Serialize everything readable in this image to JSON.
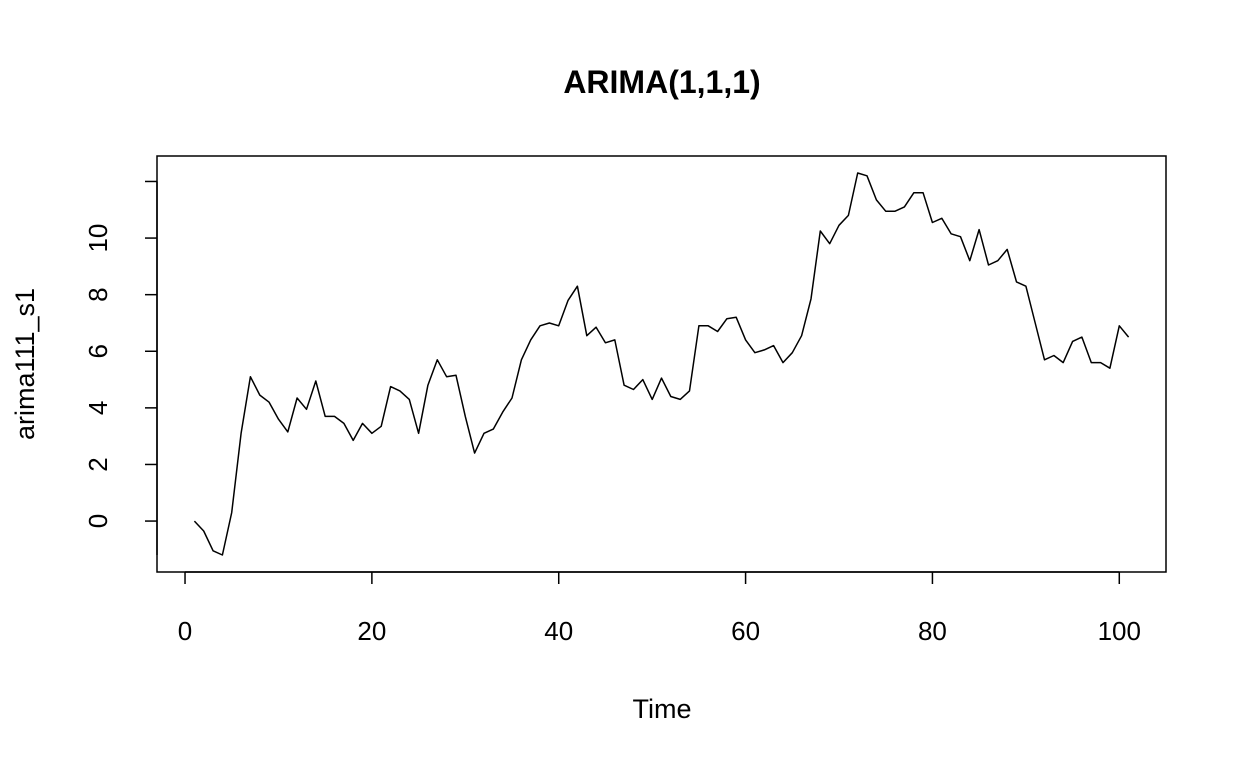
{
  "chart_data": {
    "type": "line",
    "title": "ARIMA(1,1,1)",
    "xlabel": "Time",
    "ylabel": "arima111_s1",
    "xlim": [
      -3,
      105
    ],
    "ylim": [
      -1.8,
      12.9
    ],
    "x_ticks": [
      0,
      20,
      40,
      60,
      80,
      100
    ],
    "y_ticks": [
      0,
      2,
      4,
      6,
      8,
      10
    ],
    "x_tick_labels": [
      "0",
      "20",
      "40",
      "60",
      "80",
      "100"
    ],
    "y_tick_labels": [
      "0",
      "2",
      "4",
      "6",
      "8",
      "10"
    ],
    "grid": false,
    "series": [
      {
        "color": "#000000",
        "x": [
          1,
          2,
          3,
          4,
          5,
          6,
          7,
          8,
          9,
          10,
          11,
          12,
          13,
          14,
          15,
          16,
          17,
          18,
          19,
          20,
          21,
          22,
          23,
          24,
          25,
          26,
          27,
          28,
          29,
          30,
          31,
          32,
          33,
          34,
          35,
          36,
          37,
          38,
          39,
          40,
          41,
          42,
          43,
          44,
          45,
          46,
          47,
          48,
          49,
          50,
          51,
          52,
          53,
          54,
          55,
          56,
          57,
          58,
          59,
          60,
          61,
          62,
          63,
          64,
          65,
          66,
          67,
          68,
          69,
          70,
          71,
          72,
          73,
          74,
          75,
          76,
          77,
          78,
          79,
          80,
          81,
          82,
          83,
          84,
          85,
          86,
          87,
          88,
          89,
          90,
          91,
          92,
          93,
          94,
          95,
          96,
          97,
          98,
          99,
          100,
          101
        ],
        "values": [
          0.0,
          -0.35,
          -1.05,
          -1.2,
          0.3,
          3.1,
          5.1,
          4.45,
          4.2,
          3.6,
          3.15,
          4.35,
          3.95,
          4.95,
          3.7,
          3.7,
          3.45,
          2.85,
          3.45,
          3.1,
          3.35,
          4.75,
          4.6,
          4.3,
          3.1,
          4.8,
          5.7,
          5.1,
          5.15,
          3.7,
          2.4,
          3.1,
          3.25,
          3.85,
          4.35,
          5.7,
          6.4,
          6.9,
          7.0,
          6.9,
          7.8,
          8.3,
          6.55,
          6.85,
          6.3,
          6.4,
          4.8,
          4.65,
          5.0,
          4.3,
          5.05,
          4.4,
          4.3,
          4.6,
          6.9,
          6.9,
          6.7,
          7.15,
          7.2,
          6.4,
          5.95,
          6.05,
          6.2,
          5.6,
          5.95,
          6.55,
          7.85,
          10.25,
          9.8,
          10.45,
          10.8,
          12.3,
          12.2,
          11.35,
          10.95,
          10.95,
          11.1,
          11.6,
          11.6,
          10.55,
          10.7,
          10.15,
          10.05,
          9.2,
          10.3,
          9.05,
          9.2,
          9.6,
          8.45,
          8.3,
          7.0,
          5.7,
          5.85,
          5.6,
          6.35,
          6.5,
          5.6,
          5.6,
          5.4,
          6.9,
          6.5
        ]
      }
    ]
  }
}
